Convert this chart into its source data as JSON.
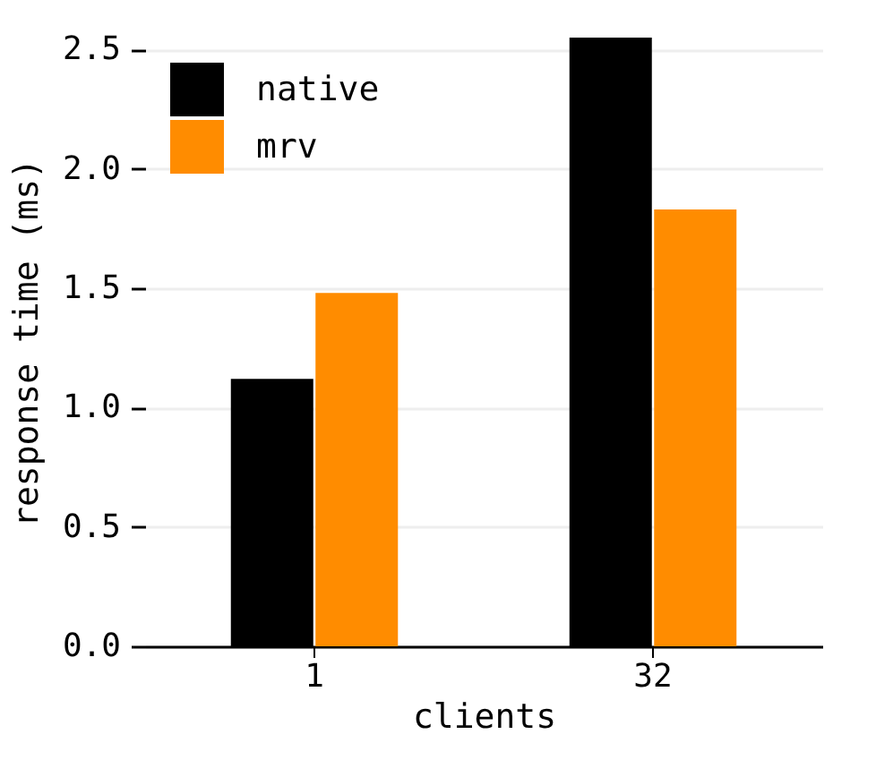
{
  "chart_data": {
    "type": "bar",
    "xlabel": "clients",
    "ylabel": "response time (ms)",
    "categories": [
      "1",
      "32"
    ],
    "series": [
      {
        "name": "native",
        "color": "#000000",
        "values": [
          1.12,
          2.55
        ]
      },
      {
        "name": "mrv",
        "color": "#ff8c00",
        "values": [
          1.48,
          1.83
        ]
      }
    ],
    "ylim": [
      0,
      2.55
    ],
    "yticks": [
      {
        "value": 0,
        "label": "0.0"
      },
      {
        "value": 0.5,
        "label": "0.5"
      },
      {
        "value": 1,
        "label": "1.0"
      },
      {
        "value": 1.5,
        "label": "1.5"
      },
      {
        "value": 2,
        "label": "2.0"
      },
      {
        "value": 2.5,
        "label": "2.5"
      }
    ],
    "grid": "y",
    "legend": "top left"
  }
}
